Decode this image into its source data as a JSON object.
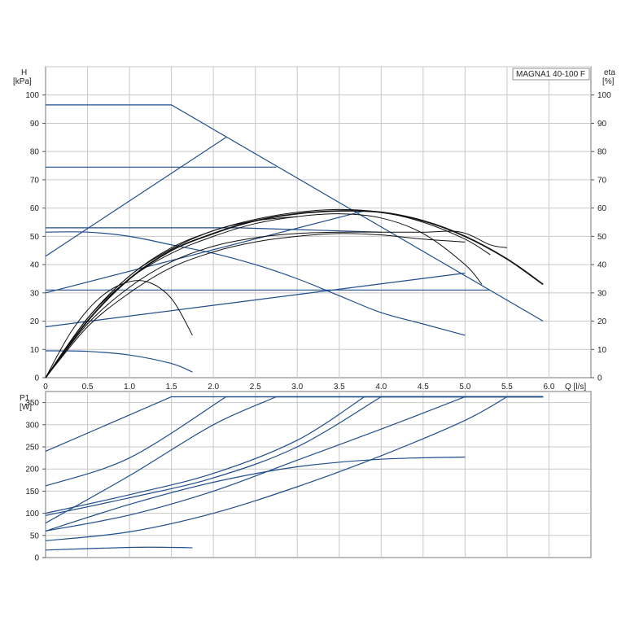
{
  "chart_data": [
    {
      "type": "line",
      "name": "head",
      "model_label": "MAGNA1 40-100 F",
      "ylabel_top": "H",
      "ylabel_unit": "[kPa]",
      "y2label_top": "eta",
      "y2label_unit": "[%]",
      "xlabel": "Q [l/s]",
      "xlim": [
        0,
        6.5
      ],
      "ylim": [
        0,
        110
      ],
      "x_ticks": [
        0,
        0.5,
        1.0,
        1.5,
        2.0,
        2.5,
        3.0,
        3.5,
        4.0,
        4.5,
        5.0,
        5.5,
        6.0
      ],
      "x_tick_labels": [
        "0",
        "0.5",
        "1.0",
        "1.5",
        "2.0",
        "2.5",
        "3.0",
        "3.5",
        "4.0",
        "4.5",
        "5.0",
        "5.5",
        "6.0"
      ],
      "y_ticks": [
        0,
        10,
        20,
        30,
        40,
        50,
        60,
        70,
        80,
        90,
        100
      ],
      "y_tick_labels": [
        "0",
        "10",
        "20",
        "30",
        "40",
        "50",
        "60",
        "70",
        "80",
        "90",
        "100"
      ],
      "grid": true,
      "line_color": "#1f4e8c",
      "eta_color": "#111111",
      "head_series": [
        {
          "x": [
            0,
            1.5,
            5.93
          ],
          "y": [
            96.5,
            96.5,
            20
          ]
        },
        {
          "x": [
            0,
            2.75
          ],
          "y": [
            74.5,
            74.5
          ]
        },
        {
          "x": [
            0,
            2.3,
            4.0
          ],
          "y": [
            53,
            53,
            51.5
          ]
        },
        {
          "x": [
            0,
            5.3
          ],
          "y": [
            31,
            31
          ]
        },
        {
          "x": [
            0,
            2.15
          ],
          "y": [
            43,
            85
          ]
        },
        {
          "x": [
            0,
            5.0
          ],
          "y": [
            18,
            37
          ]
        },
        {
          "x": [
            0,
            3.8
          ],
          "y": [
            30,
            59
          ]
        },
        {
          "x": [
            0,
            0.5,
            1.0,
            1.5,
            2.0,
            2.5,
            3.0,
            3.5,
            4.0,
            4.5,
            5.0
          ],
          "y": [
            51.5,
            51.5,
            50,
            47,
            44,
            40,
            35,
            29,
            23,
            19,
            15
          ]
        },
        {
          "x": [
            0,
            0.5,
            1.0,
            1.5,
            1.75
          ],
          "y": [
            9.5,
            9.3,
            8,
            5,
            2
          ]
        }
      ],
      "eta_series": [
        {
          "x": [
            0,
            0.5,
            1.0,
            1.5,
            2.0,
            2.5,
            3.0,
            3.5,
            4.0,
            4.5,
            5.0,
            5.5,
            5.93
          ],
          "y": [
            0,
            20,
            35,
            45,
            51,
            55.5,
            58,
            59,
            58.5,
            55.5,
            50,
            42,
            33
          ]
        },
        {
          "x": [
            0,
            0.5,
            1.0,
            1.5,
            2.0,
            2.5,
            3.0,
            3.5,
            4.0,
            4.5,
            5.0,
            5.3
          ],
          "y": [
            0,
            21,
            36,
            46,
            52,
            56,
            58.5,
            59.5,
            58.5,
            55,
            49,
            43.5
          ]
        },
        {
          "x": [
            0,
            0.5,
            1.0,
            1.5,
            2.0,
            2.5,
            3.0,
            3.5,
            4.0,
            4.5,
            5.0,
            5.2
          ],
          "y": [
            0,
            21,
            35,
            44,
            50,
            54.5,
            57,
            58,
            56.5,
            51,
            40,
            33
          ]
        },
        {
          "x": [
            0,
            0.5,
            1.0,
            1.5,
            2.0,
            2.5,
            3.0,
            3.5,
            4.0,
            4.5,
            4.95,
            5.3,
            5.5
          ],
          "y": [
            0,
            19,
            32,
            41,
            46.5,
            49.5,
            51,
            51.5,
            51.5,
            51.5,
            51.5,
            47,
            46
          ]
        },
        {
          "x": [
            0,
            0.5,
            1.0,
            1.5,
            2.0,
            2.5,
            3.0,
            3.5,
            4.0,
            4.5,
            5.0
          ],
          "y": [
            0,
            18,
            30,
            39,
            44.5,
            48,
            50,
            51,
            50.5,
            49,
            48
          ]
        },
        {
          "x": [
            0,
            0.5,
            1.0,
            1.5,
            2.0,
            2.5,
            3.0
          ],
          "y": [
            0,
            21,
            36,
            45.5,
            52,
            55.5,
            57
          ]
        },
        {
          "x": [
            0,
            0.3,
            0.6,
            0.9,
            1.2,
            1.5,
            1.75
          ],
          "y": [
            0,
            16,
            27,
            33,
            34,
            28,
            15
          ]
        }
      ]
    },
    {
      "type": "line",
      "name": "power",
      "ylabel_top": "P1",
      "ylabel_unit": "[W]",
      "xlim": [
        0,
        6.5
      ],
      "ylim": [
        0,
        375
      ],
      "y_ticks": [
        0,
        50,
        100,
        150,
        200,
        250,
        300,
        350
      ],
      "y_tick_labels": [
        "0",
        "50",
        "100",
        "150",
        "200",
        "250",
        "300",
        "350"
      ],
      "grid": true,
      "line_color": "#1f4e8c",
      "power_series": [
        {
          "x": [
            0,
            1.5,
            5.93
          ],
          "y": [
            240,
            363,
            363
          ]
        },
        {
          "x": [
            0,
            1.0,
            2.15,
            5.93
          ],
          "y": [
            162,
            225,
            363,
            363
          ]
        },
        {
          "x": [
            0,
            1.0,
            2.0,
            2.75,
            5.93
          ],
          "y": [
            78,
            185,
            300,
            363,
            363
          ]
        },
        {
          "x": [
            0,
            1.0,
            2.0,
            3.0,
            3.8,
            5.93
          ],
          "y": [
            100,
            142,
            190,
            265,
            363,
            363
          ]
        },
        {
          "x": [
            0,
            1.0,
            2.0,
            3.0,
            4.0,
            5.93
          ],
          "y": [
            95,
            135,
            180,
            250,
            363,
            363
          ]
        },
        {
          "x": [
            0,
            1.0,
            2.0,
            3.0,
            4.0,
            5.0,
            5.93
          ],
          "y": [
            60,
            96,
            150,
            220,
            290,
            363,
            363
          ]
        },
        {
          "x": [
            0,
            1.0,
            2.0,
            3.0,
            4.0,
            5.0,
            5.5,
            5.93
          ],
          "y": [
            38,
            58,
            100,
            160,
            230,
            310,
            363,
            363
          ]
        },
        {
          "x": [
            0,
            1.0,
            2.0,
            3.0,
            4.0,
            5.0
          ],
          "y": [
            60,
            120,
            170,
            205,
            222,
            227
          ]
        },
        {
          "x": [
            0,
            1.0,
            1.5,
            1.75
          ],
          "y": [
            17,
            23,
            23,
            22
          ]
        }
      ]
    }
  ]
}
